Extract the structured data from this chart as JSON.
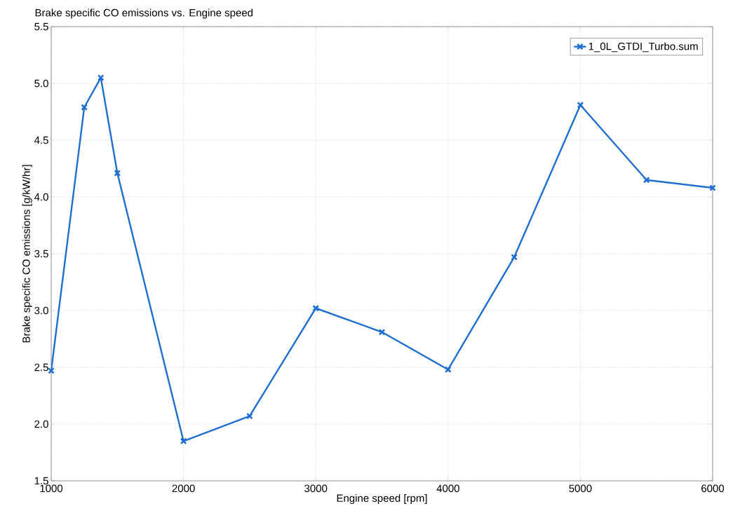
{
  "chart_data": {
    "type": "line",
    "title": "Brake specific CO emissions vs. Engine speed",
    "xlabel": "Engine speed  [rpm]",
    "ylabel": "Brake specific CO emissions  [g/kW/hr]",
    "x": [
      1000,
      1250,
      1375,
      1500,
      2000,
      2500,
      3000,
      3500,
      4000,
      4500,
      5000,
      5500,
      6000
    ],
    "series": [
      {
        "name": "1_0L_GTDI_Turbo.sum",
        "color": "#1f6fd0",
        "values": [
          2.47,
          4.79,
          5.05,
          4.21,
          1.85,
          2.07,
          3.02,
          2.81,
          2.48,
          3.47,
          4.81,
          4.15,
          4.08
        ]
      }
    ],
    "xlim": [
      1000,
      6000
    ],
    "ylim": [
      1.5,
      5.5
    ],
    "xticks": [
      1000,
      2000,
      3000,
      4000,
      5000,
      6000
    ],
    "yticks": [
      {
        "value": 1.5,
        "label": "1.5"
      },
      {
        "value": 2.0,
        "label": "2.0"
      },
      {
        "value": 2.5,
        "label": "2.5"
      },
      {
        "value": 3.0,
        "label": "3.0"
      },
      {
        "value": 3.5,
        "label": "3.5"
      },
      {
        "value": 4.0,
        "label": "4.0"
      },
      {
        "value": 4.5,
        "label": "4.5"
      },
      {
        "value": 5.0,
        "label": "5.0"
      },
      {
        "value": 5.5,
        "label": "5.5"
      }
    ],
    "grid": true,
    "legend": "top right",
    "marker": "cross",
    "line_style": "solid"
  }
}
